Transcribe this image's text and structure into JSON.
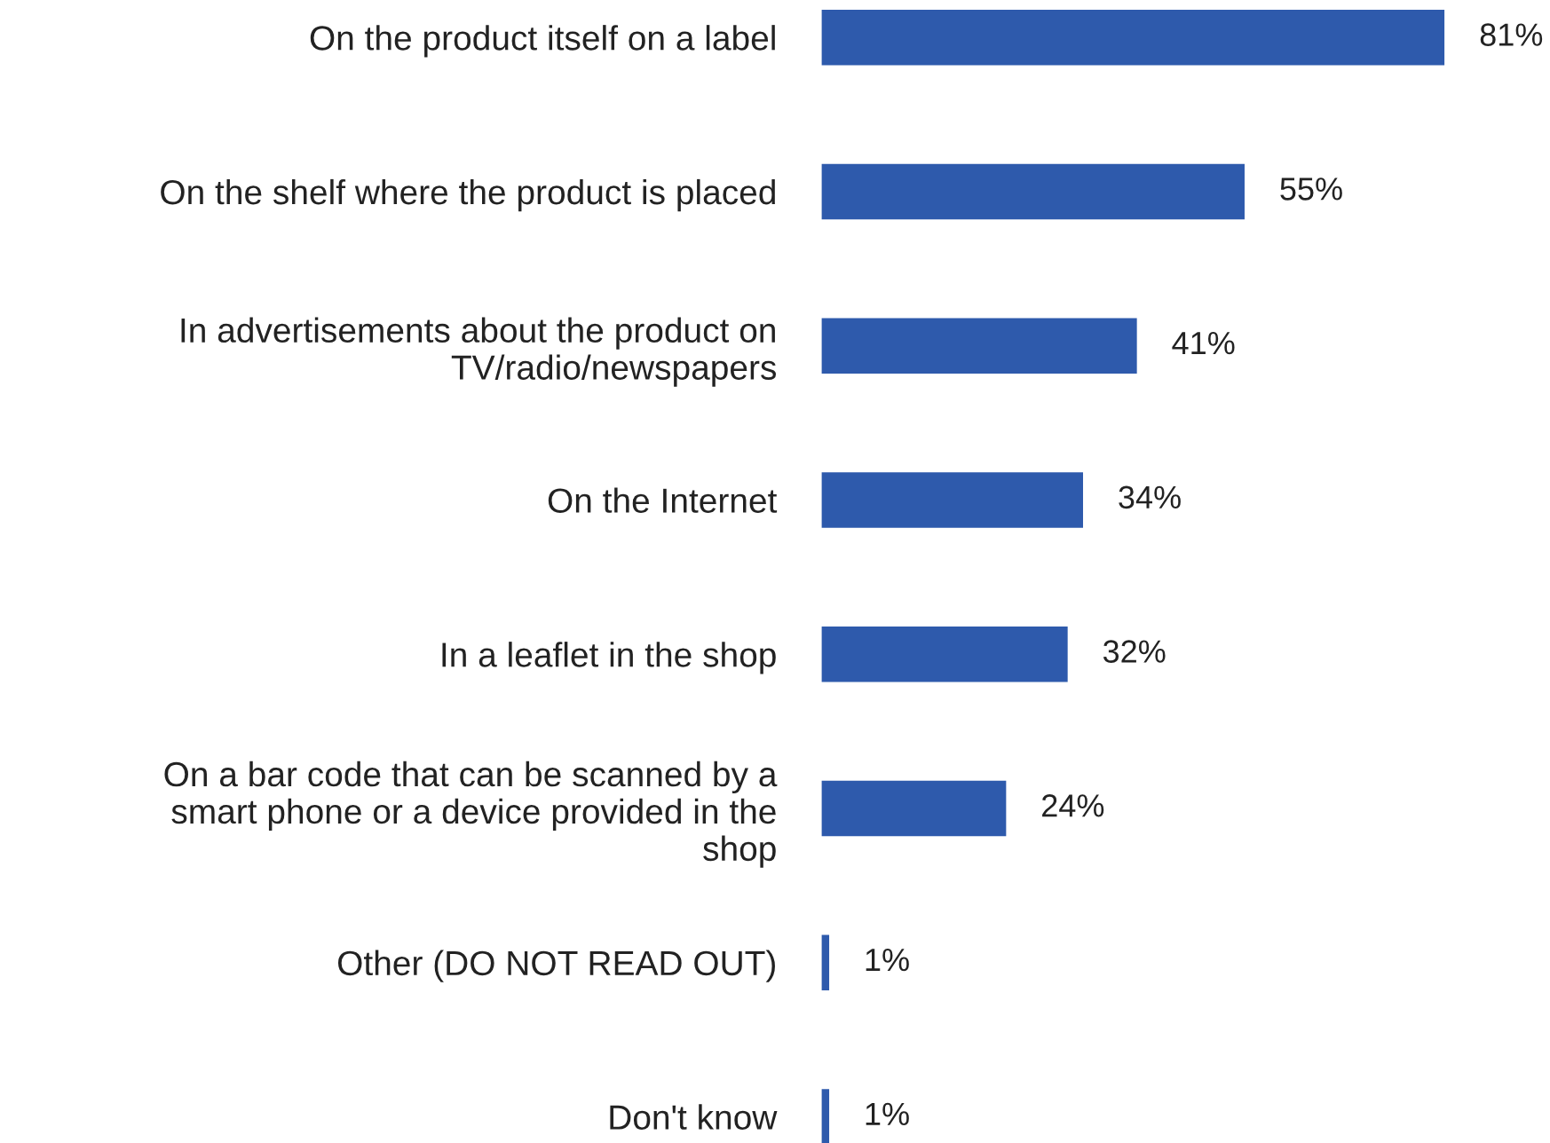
{
  "chart_data": {
    "type": "bar",
    "orientation": "horizontal",
    "categories": [
      "On the product itself on a label",
      "On the shelf where the product is placed",
      "In advertisements about the product on\nTV/radio/newspapers",
      "On the Internet",
      "In a leaflet in the shop",
      "On a bar code that can be scanned by a\nsmart phone or a device provided in the\nshop",
      "Other (DO NOT READ OUT)",
      "Don't know"
    ],
    "values": [
      81,
      55,
      41,
      34,
      32,
      24,
      1,
      1
    ],
    "value_labels": [
      "81%",
      "55%",
      "41%",
      "34%",
      "32%",
      "24%",
      "1%",
      "1%"
    ],
    "color": "#2e5aac",
    "grid": false,
    "legend": false
  }
}
